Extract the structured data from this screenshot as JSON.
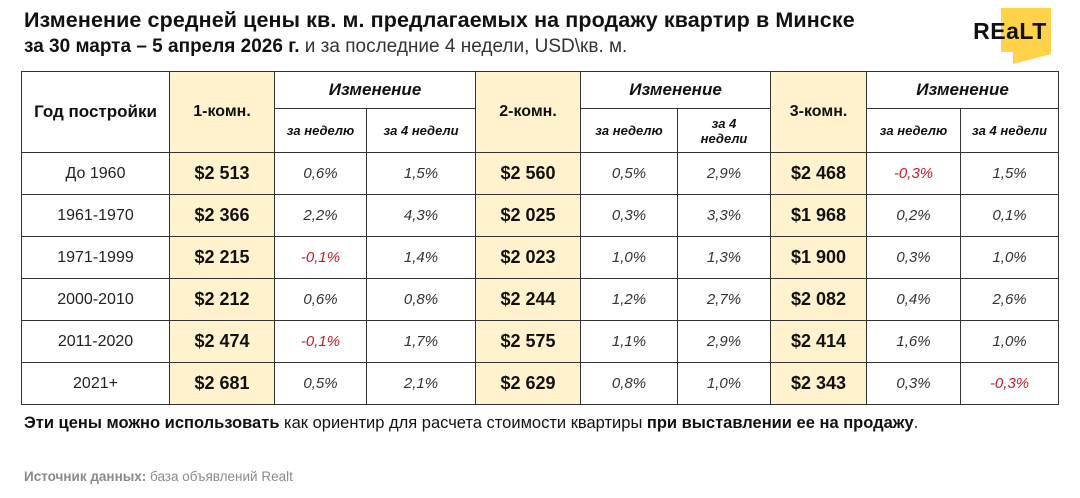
{
  "header": {
    "title_line1": "Изменение средней цены кв. м. предлагаемых на продажу квартир в Минске",
    "title_line2_bold": "за 30 марта – 5 апреля 2026 г.",
    "title_line2_regular": " и за последние 4 недели, USD\\кв. м.",
    "logo_text": "REaLT",
    "logo_color": "#FFD24A"
  },
  "table": {
    "col_year": "Год постройки",
    "col_change": "Изменение",
    "col_week": "за неделю",
    "col_4weeks": "за 4 недели",
    "rooms": [
      "1-комн.",
      "2-комн.",
      "3-комн."
    ],
    "rows": [
      {
        "year": "До 1960",
        "p1": "$2 513",
        "w1": "0,6%",
        "m1": "1,5%",
        "p2": "$2 560",
        "w2": "0,5%",
        "m2": "2,9%",
        "p3": "$2 468",
        "w3": "-0,3%",
        "m3": "1,5%"
      },
      {
        "year": "1961-1970",
        "p1": "$2 366",
        "w1": "2,2%",
        "m1": "4,3%",
        "p2": "$2 025",
        "w2": "0,3%",
        "m2": "3,3%",
        "p3": "$1 968",
        "w3": "0,2%",
        "m3": "0,1%"
      },
      {
        "year": "1971-1999",
        "p1": "$2 215",
        "w1": "-0,1%",
        "m1": "1,4%",
        "p2": "$2 023",
        "w2": "1,0%",
        "m2": "1,3%",
        "p3": "$1 900",
        "w3": "0,3%",
        "m3": "1,0%"
      },
      {
        "year": "2000-2010",
        "p1": "$2 212",
        "w1": "0,6%",
        "m1": "0,8%",
        "p2": "$2 244",
        "w2": "1,2%",
        "m2": "2,7%",
        "p3": "$2 082",
        "w3": "0,4%",
        "m3": "2,6%"
      },
      {
        "year": "2011-2020",
        "p1": "$2 474",
        "w1": "-0,1%",
        "m1": "1,7%",
        "p2": "$2 575",
        "w2": "1,1%",
        "m2": "2,9%",
        "p3": "$2 414",
        "w3": "1,6%",
        "m3": "1,0%"
      },
      {
        "year": "2021+",
        "p1": "$2 681",
        "w1": "0,5%",
        "m1": "2,1%",
        "p2": "$2 629",
        "w2": "0,8%",
        "m2": "1,0%",
        "p3": "$2 343",
        "w3": "0,3%",
        "m3": "-0,3%"
      }
    ],
    "colors": {
      "price_bg": "#FFF2CC",
      "negative": "#C0202A",
      "border": "#333333"
    }
  },
  "footer": {
    "note_bold1": "Эти цены можно использовать",
    "note_regular": " как ориентир для расчета стоимости квартиры ",
    "note_bold2": "при выставлении ее на продажу",
    "note_end": ".",
    "source_label": "Источник данных:",
    "source_value": " база объявлений Realt"
  },
  "chart_data": {
    "type": "table",
    "title": "Изменение средней цены кв. м. предлагаемых на продажу квартир в Минске за 30 марта – 5 апреля 2026 г. и за последние 4 недели, USD\\кв. м.",
    "columns": [
      "Год постройки",
      "1-комн.",
      "1-комн. изм. за неделю",
      "1-комн. изм. за 4 недели",
      "2-комн.",
      "2-комн. изм. за неделю",
      "2-комн. изм. за 4 недели",
      "3-комн.",
      "3-комн. изм. за неделю",
      "3-комн. изм. за 4 недели"
    ],
    "categories": [
      "До 1960",
      "1961-1970",
      "1971-1999",
      "2000-2010",
      "2011-2020",
      "2021+"
    ],
    "series": [
      {
        "name": "1-комн. (USD/кв. м)",
        "values": [
          2513,
          2366,
          2215,
          2212,
          2474,
          2681
        ]
      },
      {
        "name": "1-комн. за неделю (%)",
        "values": [
          0.6,
          2.2,
          -0.1,
          0.6,
          -0.1,
          0.5
        ]
      },
      {
        "name": "1-комн. за 4 недели (%)",
        "values": [
          1.5,
          4.3,
          1.4,
          0.8,
          1.7,
          2.1
        ]
      },
      {
        "name": "2-комн. (USD/кв. м)",
        "values": [
          2560,
          2025,
          2023,
          2244,
          2575,
          2629
        ]
      },
      {
        "name": "2-комн. за неделю (%)",
        "values": [
          0.5,
          0.3,
          1.0,
          1.2,
          1.1,
          0.8
        ]
      },
      {
        "name": "2-комн. за 4 недели (%)",
        "values": [
          2.9,
          3.3,
          1.3,
          2.7,
          2.9,
          1.0
        ]
      },
      {
        "name": "3-комн. (USD/кв. м)",
        "values": [
          2468,
          1968,
          1900,
          2082,
          2414,
          2343
        ]
      },
      {
        "name": "3-комн. за неделю (%)",
        "values": [
          -0.3,
          0.2,
          0.3,
          0.4,
          1.6,
          0.3
        ]
      },
      {
        "name": "3-комн. за 4 недели (%)",
        "values": [
          1.5,
          0.1,
          1.0,
          2.6,
          1.0,
          -0.3
        ]
      }
    ],
    "source": "база объявлений Realt"
  }
}
